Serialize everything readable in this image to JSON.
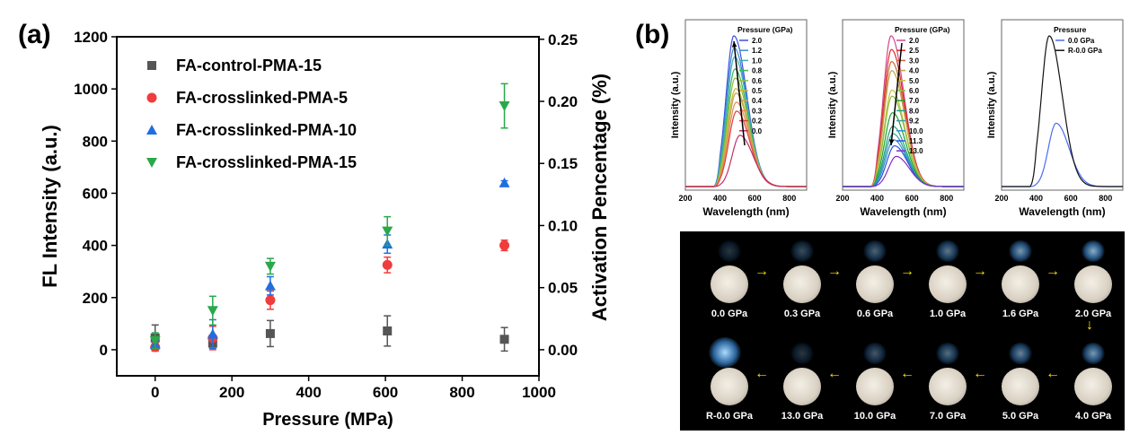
{
  "labels": {
    "a": "(a)",
    "b": "(b)"
  },
  "chart_data": [
    {
      "type": "scatter",
      "xlabel": "Pressure (MPa)",
      "ylabel": "FL Intensity (a.u.)",
      "ylabel_right": "Activation Pencentage (%)",
      "xlim": [
        -100,
        1000
      ],
      "ylim": [
        -100,
        1200
      ],
      "ylim_right": [
        -0.021,
        0.252
      ],
      "xticks": [
        0,
        200,
        400,
        600,
        800,
        1000
      ],
      "yticks": [
        0,
        200,
        400,
        600,
        800,
        1000,
        1200
      ],
      "yticks_right": [
        "0.00",
        "0.05",
        "0.10",
        "0.15",
        "0.20",
        "0.25"
      ],
      "legend_position": "top-left",
      "x": [
        0,
        150,
        300,
        605,
        910
      ],
      "series": [
        {
          "name": "FA-control-PMA-15",
          "marker": "square",
          "color": "#555555",
          "values": [
            45,
            25,
            62,
            72,
            40
          ],
          "errors": [
            50,
            10,
            50,
            58,
            45
          ]
        },
        {
          "name": "FA-crosslinked-PMA-5",
          "marker": "circle",
          "color": "#f03c3c",
          "values": [
            10,
            45,
            190,
            325,
            400
          ],
          "errors": [
            15,
            45,
            35,
            30,
            20
          ]
        },
        {
          "name": "FA-crosslinked-PMA-10",
          "marker": "triangle-up",
          "color": "#1f6fe0",
          "values": [
            20,
            60,
            245,
            405,
            640
          ],
          "errors": [
            15,
            55,
            35,
            35,
            8
          ]
        },
        {
          "name": "FA-crosslinked-PMA-15",
          "marker": "triangle-down",
          "color": "#2aa84a",
          "values": [
            35,
            150,
            320,
            455,
            935
          ],
          "errors": [
            30,
            55,
            30,
            55,
            85
          ]
        }
      ]
    },
    {
      "type": "line",
      "xlabel": "Wavelength (nm)",
      "ylabel": "Intensity (a.u.)",
      "xlim": [
        200,
        900
      ],
      "xticks": [
        200,
        400,
        600,
        800
      ],
      "legend_title": "Pressure (GPa)",
      "arrow": "up",
      "series": [
        {
          "name": "2.0",
          "color": "#3b4fe0",
          "peak": 1.0,
          "center": 480
        },
        {
          "name": "1.2",
          "color": "#3b8ad0",
          "peak": 0.92,
          "center": 482
        },
        {
          "name": "1.0",
          "color": "#3fb0b8",
          "peak": 0.86,
          "center": 484
        },
        {
          "name": "0.8",
          "color": "#3fb55a",
          "peak": 0.78,
          "center": 486
        },
        {
          "name": "0.6",
          "color": "#8cc03c",
          "peak": 0.72,
          "center": 488
        },
        {
          "name": "0.5",
          "color": "#c8b82c",
          "peak": 0.65,
          "center": 490
        },
        {
          "name": "0.4",
          "color": "#c8a060",
          "peak": 0.62,
          "center": 492
        },
        {
          "name": "0.3",
          "color": "#e88a50",
          "peak": 0.56,
          "center": 494
        },
        {
          "name": "0.2",
          "color": "#e04040",
          "peak": 0.5,
          "center": 496
        },
        {
          "name": "0.0",
          "color": "#c0306a",
          "peak": 0.34,
          "center": 515
        }
      ]
    },
    {
      "type": "line",
      "xlabel": "Wavelength (nm)",
      "ylabel": "Intensity (a.u.)",
      "xlim": [
        200,
        900
      ],
      "xticks": [
        200,
        400,
        600,
        800
      ],
      "legend_title": "Pressure (GPa)",
      "arrow": "down",
      "series": [
        {
          "name": "2.0",
          "color": "#d04890",
          "peak": 1.0,
          "center": 480
        },
        {
          "name": "2.5",
          "color": "#e02828",
          "peak": 0.91,
          "center": 482
        },
        {
          "name": "3.0",
          "color": "#c86a30",
          "peak": 0.83,
          "center": 483
        },
        {
          "name": "4.0",
          "color": "#c0a050",
          "peak": 0.77,
          "center": 484
        },
        {
          "name": "5.0",
          "color": "#c8c040",
          "peak": 0.64,
          "center": 485
        },
        {
          "name": "6.0",
          "color": "#8cc040",
          "peak": 0.6,
          "center": 486
        },
        {
          "name": "7.0",
          "color": "#20a030",
          "peak": 0.49,
          "center": 488
        },
        {
          "name": "8.0",
          "color": "#20a080",
          "peak": 0.4,
          "center": 490
        },
        {
          "name": "9.2",
          "color": "#30a0a0",
          "peak": 0.35,
          "center": 492
        },
        {
          "name": "10.0",
          "color": "#3090d0",
          "peak": 0.31,
          "center": 495
        },
        {
          "name": "11.3",
          "color": "#3050e0",
          "peak": 0.27,
          "center": 500
        },
        {
          "name": "13.0",
          "color": "#8030c0",
          "peak": 0.2,
          "center": 510
        }
      ]
    },
    {
      "type": "line",
      "xlabel": "Wavelength (nm)",
      "ylabel": "Intensity (a.u.)",
      "xlim": [
        200,
        900
      ],
      "xticks": [
        200,
        400,
        600,
        800
      ],
      "legend_title": "Pressure",
      "series": [
        {
          "name": "0.0 GPa",
          "color": "#4a6cf0",
          "peak": 0.42,
          "center": 515
        },
        {
          "name": "R-0.0 GPa",
          "color": "#111111",
          "peak": 1.0,
          "center": 475
        }
      ]
    }
  ],
  "photos": {
    "row1": [
      "0.0 GPa",
      "0.3 GPa",
      "0.6 GPa",
      "1.0 GPa",
      "1.6 GPa",
      "2.0 GPa"
    ],
    "row2": [
      "R-0.0 GPa",
      "13.0 GPa",
      "10.0 GPa",
      "7.0 GPa",
      "5.0 GPa",
      "4.0 GPa"
    ]
  }
}
